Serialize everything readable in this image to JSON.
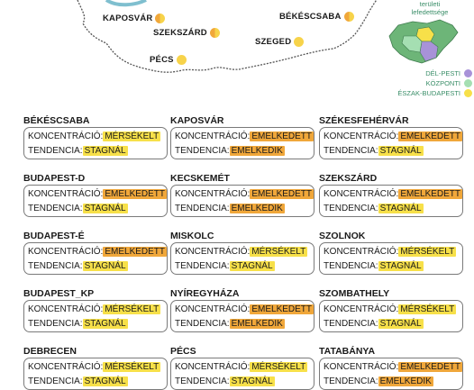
{
  "colors": {
    "orange": "#f0a73a",
    "yellow": "#f7e049",
    "purple": "#a892d8",
    "green": "#a5dfb2",
    "mapGreen": "#6db578",
    "accentGreen": "#3a8e68"
  },
  "map": {
    "cities": [
      {
        "name": "KAPOSVÁR",
        "marker": "half"
      },
      {
        "name": "SZEKSZÁRD",
        "marker": "half"
      },
      {
        "name": "PÉCS",
        "marker": "yel"
      },
      {
        "name": "BÉKÉSCSABA",
        "marker": "half"
      },
      {
        "name": "SZEGED",
        "marker": "yel"
      }
    ]
  },
  "legend": {
    "title_line1": "területi",
    "title_line2": "lefedettsége",
    "items": [
      {
        "label": "DÉL-PESTI",
        "color": "#a892d8"
      },
      {
        "label": "KÖZPONTI",
        "color": "#a5dfb2"
      },
      {
        "label": "ÉSZAK-BUDAPESTI",
        "color": "#f7e049"
      }
    ]
  },
  "labels": {
    "conc": "KONCENTRÁCIÓ:",
    "tend": "TENDENCIA:"
  },
  "cards": [
    {
      "name": "BÉKÉSCSABA",
      "conc": "MÉRSÉKELT",
      "concColor": "yellow",
      "tend": "STAGNÁL",
      "tendColor": "yellow"
    },
    {
      "name": "KAPOSVÁR",
      "conc": "EMELKEDETT",
      "concColor": "orange",
      "tend": "EMELKEDIK",
      "tendColor": "orange"
    },
    {
      "name": "SZÉKESFEHÉRVÁR",
      "conc": "EMELKEDETT",
      "concColor": "orange",
      "tend": "STAGNÁL",
      "tendColor": "yellow"
    },
    {
      "name": "BUDAPEST-D",
      "conc": "EMELKEDETT",
      "concColor": "orange",
      "tend": "STAGNÁL",
      "tendColor": "yellow"
    },
    {
      "name": "KECSKEMÉT",
      "conc": "EMELKEDETT",
      "concColor": "orange",
      "tend": "EMELKEDIK",
      "tendColor": "orange"
    },
    {
      "name": "SZEKSZÁRD",
      "conc": "EMELKEDETT",
      "concColor": "orange",
      "tend": "STAGNÁL",
      "tendColor": "yellow"
    },
    {
      "name": "BUDAPEST-É",
      "conc": "EMELKEDETT",
      "concColor": "orange",
      "tend": "STAGNÁL",
      "tendColor": "yellow"
    },
    {
      "name": "MISKOLC",
      "conc": "MÉRSÉKELT",
      "concColor": "yellow",
      "tend": "STAGNÁL",
      "tendColor": "yellow"
    },
    {
      "name": "SZOLNOK",
      "conc": "MÉRSÉKELT",
      "concColor": "yellow",
      "tend": "STAGNÁL",
      "tendColor": "yellow"
    },
    {
      "name": "BUDAPEST_KP",
      "conc": "MÉRSÉKELT",
      "concColor": "yellow",
      "tend": "STAGNÁL",
      "tendColor": "yellow"
    },
    {
      "name": "NYÍREGYHÁZA",
      "conc": "EMELKEDETT",
      "concColor": "orange",
      "tend": "EMELKEDIK",
      "tendColor": "orange"
    },
    {
      "name": "SZOMBATHELY",
      "conc": "MÉRSÉKELT",
      "concColor": "yellow",
      "tend": "STAGNÁL",
      "tendColor": "yellow"
    },
    {
      "name": "DEBRECEN",
      "conc": "MÉRSÉKELT",
      "concColor": "yellow",
      "tend": "STAGNÁL",
      "tendColor": "yellow"
    },
    {
      "name": "PÉCS",
      "conc": "MÉRSÉKELT",
      "concColor": "yellow",
      "tend": "STAGNÁL",
      "tendColor": "yellow"
    },
    {
      "name": "TATABÁNYA",
      "conc": "EMELKEDETT",
      "concColor": "orange",
      "tend": "EMELKEDIK",
      "tendColor": "orange"
    }
  ]
}
